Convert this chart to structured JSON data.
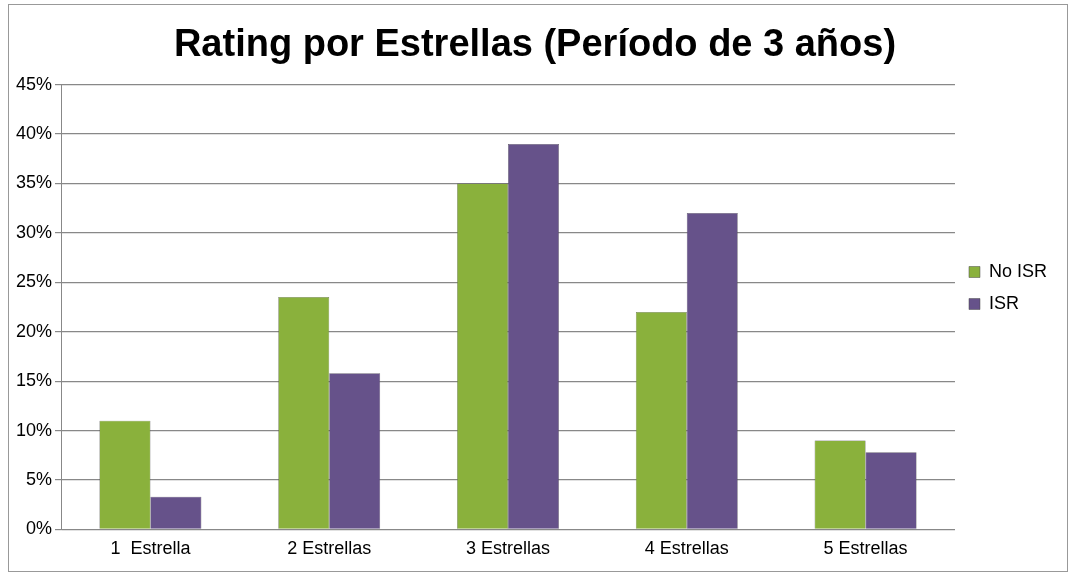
{
  "chart_data": {
    "type": "bar",
    "title": "Rating por Estrellas (Período de 3 años)",
    "categories": [
      "1  Estrella",
      "2 Estrellas",
      "3 Estrellas",
      "4 Estrellas",
      "5 Estrellas"
    ],
    "series": [
      {
        "name": "No ISR",
        "color": "#8ab13c",
        "values": [
          11,
          23.5,
          35,
          22,
          9
        ]
      },
      {
        "name": "ISR",
        "color": "#66528a",
        "values": [
          3.3,
          15.8,
          39,
          32,
          7.8
        ]
      }
    ],
    "ylim": [
      0,
      45
    ],
    "yticks": [
      {
        "value": 0,
        "label": "0%"
      },
      {
        "value": 5,
        "label": "5%"
      },
      {
        "value": 10,
        "label": "10%"
      },
      {
        "value": 15,
        "label": "15%"
      },
      {
        "value": 20,
        "label": "20%"
      },
      {
        "value": 25,
        "label": "25%"
      },
      {
        "value": 30,
        "label": "30%"
      },
      {
        "value": 35,
        "label": "35%"
      },
      {
        "value": 40,
        "label": "40%"
      },
      {
        "value": 45,
        "label": "45%"
      }
    ],
    "grid": "y",
    "legend": "right"
  }
}
